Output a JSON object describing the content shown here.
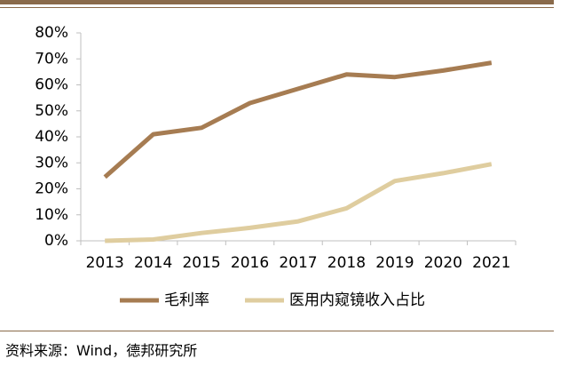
{
  "colors": {
    "rule": "#8a6a4a",
    "series": [
      "#a67c52",
      "#dfcd9f"
    ]
  },
  "chart_data": {
    "type": "line",
    "x": [
      "2013",
      "2014",
      "2015",
      "2016",
      "2017",
      "2018",
      "2019",
      "2020",
      "2021"
    ],
    "ylim": [
      0,
      80
    ],
    "yticks": [
      0,
      10,
      20,
      30,
      40,
      50,
      60,
      70,
      80
    ],
    "ytick_labels": [
      "0%",
      "10%",
      "20%",
      "30%",
      "40%",
      "50%",
      "60%",
      "70%",
      "80%"
    ],
    "grid": false,
    "legend_position": "bottom",
    "series": [
      {
        "name": "毛利率",
        "values": [
          24.5,
          41,
          43.5,
          53,
          58.5,
          64,
          63,
          65.5,
          68.5
        ]
      },
      {
        "name": "医用内窥镜收入占比",
        "values": [
          0,
          0.5,
          3,
          5,
          7.5,
          12.5,
          23,
          26,
          29.5
        ]
      }
    ]
  },
  "source": "资料来源：Wind，德邦研究所"
}
